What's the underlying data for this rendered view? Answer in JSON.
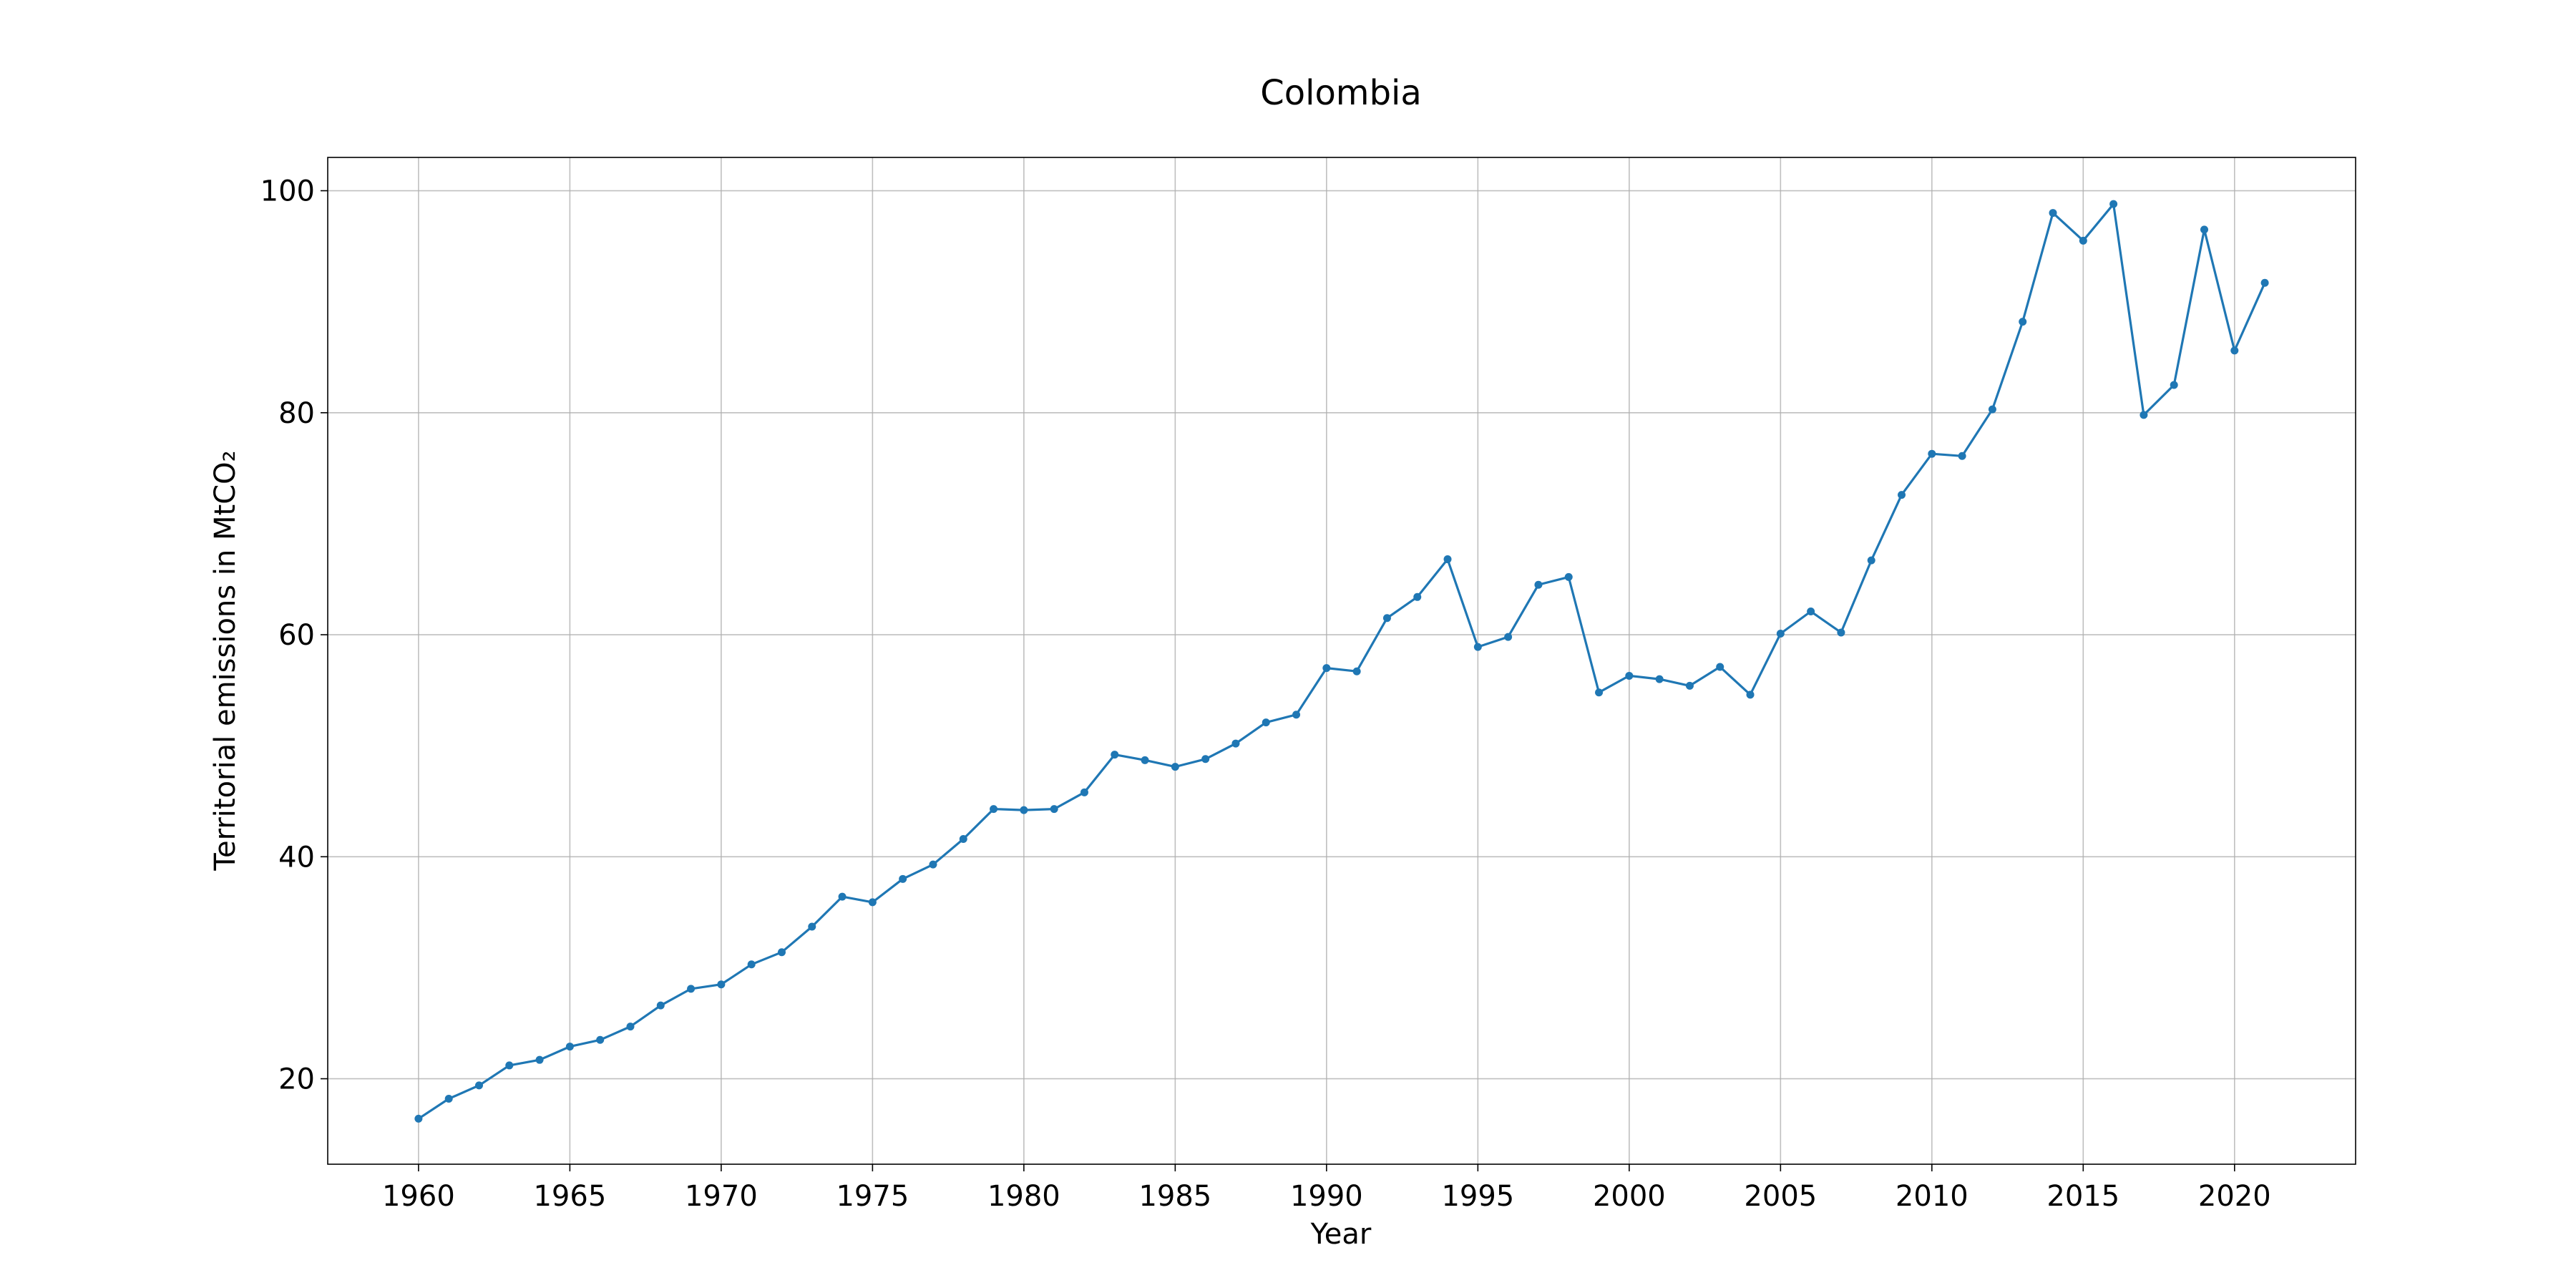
{
  "chart_data": {
    "type": "line",
    "title": "Colombia",
    "xlabel": "Year",
    "ylabel": "Territorial emissions in MtCO₂",
    "xlim": [
      1957,
      2024
    ],
    "ylim": [
      12.3,
      103
    ],
    "xticks": [
      1960,
      1965,
      1970,
      1975,
      1980,
      1985,
      1990,
      1995,
      2000,
      2005,
      2010,
      2015,
      2020
    ],
    "yticks": [
      20,
      40,
      60,
      80,
      100
    ],
    "grid": true,
    "colors": {
      "series": "#1f77b4"
    },
    "series": [
      {
        "x": [
          1960,
          1961,
          1962,
          1963,
          1964,
          1965,
          1966,
          1967,
          1968,
          1969,
          1970,
          1971,
          1972,
          1973,
          1974,
          1975,
          1976,
          1977,
          1978,
          1979,
          1980,
          1981,
          1982,
          1983,
          1984,
          1985,
          1986,
          1987,
          1988,
          1989,
          1990,
          1991,
          1992,
          1993,
          1994,
          1995,
          1996,
          1997,
          1998,
          1999,
          2000,
          2001,
          2002,
          2003,
          2004,
          2005,
          2006,
          2007,
          2008,
          2009,
          2010,
          2011,
          2012,
          2013,
          2014,
          2015,
          2016,
          2017,
          2018,
          2019,
          2020,
          2021
        ],
        "y": [
          16.4,
          18.2,
          19.4,
          21.2,
          21.7,
          22.9,
          23.5,
          24.7,
          26.6,
          28.1,
          28.5,
          30.3,
          31.4,
          33.7,
          36.4,
          35.9,
          38.0,
          39.3,
          41.6,
          44.3,
          44.2,
          44.3,
          45.8,
          49.2,
          48.7,
          48.1,
          48.8,
          50.2,
          52.1,
          52.8,
          57.0,
          56.7,
          61.5,
          63.4,
          66.8,
          58.9,
          59.8,
          64.5,
          65.2,
          54.8,
          56.3,
          56.0,
          55.4,
          57.1,
          54.6,
          60.1,
          62.1,
          60.2,
          66.7,
          72.6,
          76.3,
          76.1,
          80.3,
          88.2,
          98.0,
          95.5,
          98.8,
          79.8,
          82.5,
          96.5,
          85.6,
          91.7
        ]
      }
    ]
  }
}
